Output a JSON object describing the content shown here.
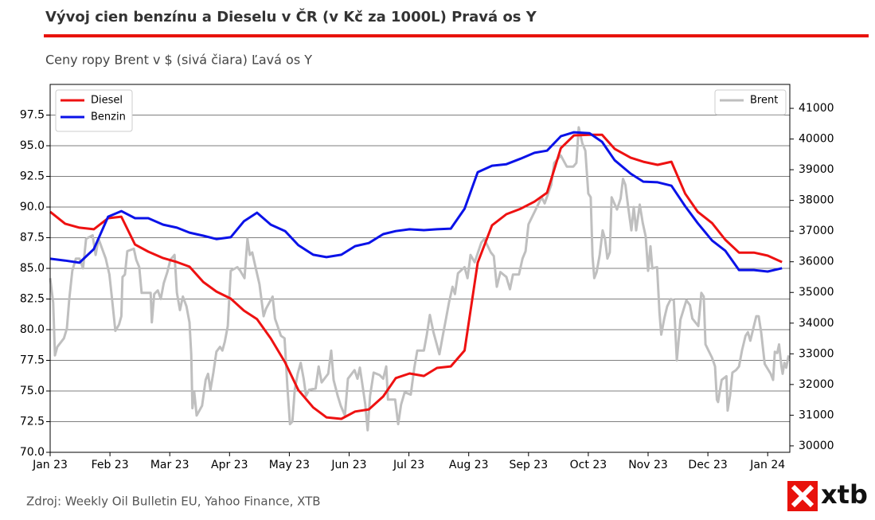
{
  "chart_data": {
    "type": "line",
    "title": "Vývoj cien benzínu a Dieselu v ČR (v Kč za 1000L) Pravá os Y",
    "subtitle": "Ceny ropy Brent v $ (sivá čiara) Ľavá os Y",
    "source": "Zdroj: Weekly Oil Bulletin EU, Yahoo Finance, XTB",
    "logo": "xtb",
    "xlim": [
      0,
      12.37
    ],
    "xticks": [
      {
        "value": 0,
        "label": "Jan 23"
      },
      {
        "value": 1,
        "label": "Feb 23"
      },
      {
        "value": 2,
        "label": "Mar 23"
      },
      {
        "value": 3,
        "label": "Apr 23"
      },
      {
        "value": 4,
        "label": "May 23"
      },
      {
        "value": 5,
        "label": "Jun 23"
      },
      {
        "value": 6,
        "label": "Jul 23"
      },
      {
        "value": 7,
        "label": "Aug 23"
      },
      {
        "value": 8,
        "label": "Sep 23"
      },
      {
        "value": 9,
        "label": "Oct 23"
      },
      {
        "value": 10,
        "label": "Nov 23"
      },
      {
        "value": 11,
        "label": "Dec 23"
      },
      {
        "value": 12,
        "label": "Jan 24"
      }
    ],
    "ylim": [
      70,
      100
    ],
    "yticks": [
      {
        "value": 70,
        "label": "70.0"
      },
      72.5,
      {
        "value": 75,
        "label": "75.0"
      },
      77.5,
      {
        "value": 80,
        "label": "80.0"
      },
      82.5,
      {
        "value": 85,
        "label": "85.0"
      },
      87.5,
      {
        "value": 90,
        "label": "90.0"
      },
      92.5,
      {
        "value": 95,
        "label": "95.0"
      },
      97.5
    ],
    "y2lim": [
      29790,
      41780
    ],
    "y2ticks": [
      30000,
      31000,
      32000,
      33000,
      34000,
      35000,
      36000,
      37000,
      38000,
      39000,
      40000,
      41000
    ],
    "grid": true,
    "legend": {
      "y2": "upper left",
      "y": "upper right"
    },
    "series": [
      {
        "name": "Diesel",
        "color": "#ee1111",
        "axis": "y2",
        "x": [
          0,
          0.25,
          0.49,
          0.73,
          0.97,
          1.19,
          1.42,
          1.64,
          1.89,
          2.12,
          2.33,
          2.56,
          2.78,
          3.02,
          3.24,
          3.46,
          3.69,
          3.93,
          4.15,
          4.4,
          4.62,
          4.87,
          5.1,
          5.33,
          5.57,
          5.78,
          6.01,
          6.25,
          6.47,
          6.7,
          6.93,
          7.15,
          7.39,
          7.63,
          7.87,
          8.1,
          8.31,
          8.54,
          8.76,
          9.02,
          9.23,
          9.44,
          9.71,
          9.92,
          10.16,
          10.39,
          10.62,
          10.83,
          11.07,
          11.29,
          11.52,
          11.77,
          12.0,
          12.24
        ],
        "values": [
          37630,
          37240,
          37110,
          37060,
          37420,
          37470,
          36560,
          36330,
          36120,
          35990,
          35840,
          35340,
          35030,
          34800,
          34410,
          34130,
          33500,
          32720,
          31820,
          31250,
          30930,
          30880,
          31120,
          31190,
          31610,
          32210,
          32360,
          32280,
          32540,
          32590,
          33110,
          35970,
          37190,
          37550,
          37730,
          37960,
          38250,
          39700,
          40120,
          40140,
          40140,
          39680,
          39390,
          39260,
          39160,
          39260,
          38220,
          37630,
          37260,
          36720,
          36300,
          36300,
          36200,
          35990
        ]
      },
      {
        "name": "Benzin",
        "color": "#0a12e8",
        "axis": "y2",
        "x": [
          0,
          0.25,
          0.49,
          0.73,
          0.97,
          1.19,
          1.42,
          1.64,
          1.89,
          2.12,
          2.33,
          2.56,
          2.78,
          3.02,
          3.24,
          3.46,
          3.69,
          3.93,
          4.15,
          4.4,
          4.62,
          4.87,
          5.1,
          5.33,
          5.57,
          5.78,
          6.01,
          6.25,
          6.47,
          6.7,
          6.93,
          7.15,
          7.39,
          7.63,
          7.87,
          8.1,
          8.31,
          8.54,
          8.76,
          9.02,
          9.23,
          9.44,
          9.71,
          9.92,
          10.16,
          10.39,
          10.62,
          10.83,
          11.07,
          11.29,
          11.52,
          11.77,
          12.0,
          12.24
        ],
        "values": [
          36100,
          36040,
          35970,
          36410,
          37470,
          37650,
          37420,
          37420,
          37210,
          37110,
          36950,
          36850,
          36740,
          36800,
          37320,
          37600,
          37210,
          37000,
          36540,
          36230,
          36150,
          36230,
          36510,
          36610,
          36900,
          37000,
          37060,
          37030,
          37060,
          37080,
          37730,
          38920,
          39130,
          39180,
          39360,
          39550,
          39620,
          40090,
          40220,
          40190,
          39910,
          39310,
          38870,
          38610,
          38590,
          38480,
          37810,
          37260,
          36690,
          36360,
          35730,
          35730,
          35680,
          35790
        ]
      },
      {
        "name": "Brent",
        "color": "#bfbfbf",
        "axis": "y",
        "x": [
          0,
          0.05,
          0.08,
          0.12,
          0.23,
          0.28,
          0.32,
          0.37,
          0.43,
          0.49,
          0.55,
          0.6,
          0.71,
          0.76,
          0.81,
          0.87,
          0.93,
          0.99,
          1.03,
          1.09,
          1.15,
          1.19,
          1.21,
          1.25,
          1.29,
          1.4,
          1.44,
          1.49,
          1.53,
          1.68,
          1.7,
          1.74,
          1.8,
          1.85,
          1.9,
          1.96,
          2.01,
          2.08,
          2.12,
          2.17,
          2.22,
          2.28,
          2.33,
          2.36,
          2.38,
          2.41,
          2.45,
          2.54,
          2.6,
          2.64,
          2.68,
          2.73,
          2.78,
          2.84,
          2.88,
          2.92,
          2.97,
          3.02,
          3.13,
          3.18,
          3.25,
          3.3,
          3.34,
          3.38,
          3.44,
          3.5,
          3.57,
          3.61,
          3.72,
          3.76,
          3.86,
          3.92,
          3.97,
          4.01,
          4.05,
          4.09,
          4.14,
          4.19,
          4.24,
          4.28,
          4.33,
          4.44,
          4.49,
          4.54,
          4.65,
          4.7,
          4.74,
          4.81,
          4.86,
          4.93,
          4.98,
          5.09,
          5.14,
          5.18,
          5.22,
          5.27,
          5.31,
          5.35,
          5.41,
          5.51,
          5.57,
          5.62,
          5.65,
          5.77,
          5.82,
          5.87,
          5.93,
          6.03,
          6.09,
          6.14,
          6.25,
          6.3,
          6.35,
          6.41,
          6.51,
          6.57,
          6.62,
          6.67,
          6.73,
          6.77,
          6.82,
          6.93,
          6.98,
          7.03,
          7.1,
          7.21,
          7.26,
          7.37,
          7.42,
          7.47,
          7.53,
          7.63,
          7.69,
          7.74,
          7.84,
          7.9,
          7.95,
          8.0,
          8.11,
          8.22,
          8.27,
          8.38,
          8.43,
          8.54,
          8.64,
          8.75,
          8.8,
          8.84,
          8.9,
          8.95,
          9.0,
          9.04,
          9.07,
          9.1,
          9.14,
          9.19,
          9.24,
          9.28,
          9.32,
          9.36,
          9.39,
          9.48,
          9.54,
          9.58,
          9.62,
          9.67,
          9.72,
          9.76,
          9.8,
          9.86,
          9.91,
          9.96,
          10.0,
          10.04,
          10.07,
          10.15,
          10.19,
          10.22,
          10.27,
          10.32,
          10.38,
          10.43,
          10.48,
          10.54,
          10.64,
          10.7,
          10.74,
          10.84,
          10.89,
          10.93,
          10.96,
          11.07,
          11.12,
          11.15,
          11.17,
          11.23,
          11.31,
          11.33,
          11.37,
          11.41,
          11.47,
          11.52,
          11.57,
          11.63,
          11.67,
          11.71,
          11.81,
          11.85,
          11.89,
          11.95,
          12.05,
          12.09,
          12.12,
          12.16,
          12.19,
          12.23,
          12.25,
          12.28,
          12.31,
          12.35
        ],
        "values": [
          84.2,
          82.2,
          77.9,
          78.6,
          79.3,
          80.1,
          82.5,
          84.8,
          85.8,
          85.8,
          85.0,
          87.4,
          87.7,
          86.1,
          87.4,
          86.6,
          85.8,
          84.5,
          82.7,
          79.9,
          80.4,
          81.1,
          84.3,
          84.5,
          86.4,
          86.6,
          85.7,
          85.1,
          83.0,
          83.0,
          80.6,
          82.9,
          83.2,
          82.5,
          83.8,
          84.7,
          85.7,
          86.1,
          83.0,
          81.6,
          82.7,
          81.9,
          80.6,
          78.0,
          73.6,
          74.9,
          73.0,
          73.8,
          75.9,
          76.4,
          75.1,
          76.5,
          78.2,
          78.6,
          78.3,
          79.0,
          80.3,
          84.8,
          85.1,
          84.8,
          84.2,
          87.4,
          86.1,
          86.3,
          85.0,
          83.7,
          81.1,
          81.7,
          82.7,
          80.9,
          79.5,
          79.3,
          75.1,
          72.3,
          72.5,
          75.1,
          76.4,
          77.3,
          76.0,
          74.6,
          75.1,
          75.2,
          77.0,
          75.7,
          76.4,
          78.3,
          75.9,
          74.6,
          73.8,
          73.0,
          76.0,
          76.7,
          76.0,
          76.9,
          75.6,
          73.9,
          71.8,
          74.6,
          76.5,
          76.3,
          76.0,
          77.0,
          74.3,
          74.3,
          72.3,
          73.9,
          74.9,
          74.7,
          76.9,
          78.3,
          78.3,
          79.6,
          81.2,
          79.8,
          78.0,
          79.6,
          80.9,
          82.2,
          83.5,
          82.9,
          84.6,
          85.1,
          84.2,
          86.1,
          85.5,
          87.1,
          87.4,
          86.3,
          86.0,
          83.5,
          84.7,
          84.3,
          83.3,
          84.5,
          84.5,
          85.8,
          86.4,
          88.6,
          89.7,
          90.8,
          90.3,
          91.8,
          93.6,
          94.2,
          93.3,
          93.3,
          93.6,
          96.5,
          95.2,
          94.6,
          91.1,
          90.8,
          86.0,
          84.2,
          84.7,
          86.1,
          88.1,
          87.4,
          85.8,
          86.3,
          90.8,
          89.8,
          90.7,
          92.3,
          91.8,
          89.9,
          88.1,
          90.0,
          88.1,
          90.2,
          88.7,
          87.6,
          84.8,
          86.8,
          85.0,
          85.1,
          81.4,
          79.6,
          80.9,
          81.9,
          82.5,
          82.4,
          77.5,
          80.8,
          82.4,
          82.0,
          80.9,
          80.3,
          83.0,
          82.7,
          78.8,
          77.7,
          77.0,
          74.3,
          74.1,
          75.9,
          76.2,
          73.4,
          74.6,
          76.5,
          76.7,
          77.0,
          78.3,
          79.5,
          79.8,
          79.1,
          81.1,
          81.1,
          79.8,
          77.2,
          76.4,
          75.9,
          78.2,
          78.1,
          78.8,
          77.0,
          76.4,
          77.3,
          76.9,
          77.9
        ]
      }
    ]
  }
}
